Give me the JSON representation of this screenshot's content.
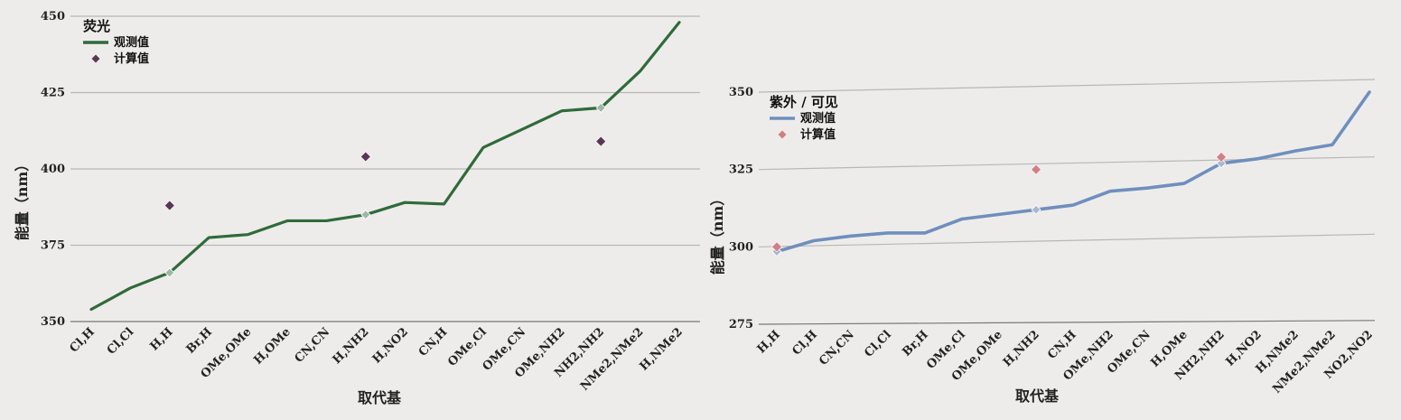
{
  "chart_data": [
    {
      "type": "line",
      "legend_title": "荧光",
      "xlabel": "取代基",
      "ylabel": "能量（nm）",
      "ylim": [
        350,
        450
      ],
      "yticks": [
        350,
        375,
        400,
        425,
        450
      ],
      "grid": true,
      "legend_position": "top-left",
      "categories": [
        "Cl,H",
        "Cl,Cl",
        "H,H",
        "Br,H",
        "OMe,OMe",
        "H,OMe",
        "CN,CN",
        "H,NH2",
        "H,NO2",
        "CN,H",
        "OMe,Cl",
        "OMe,CN",
        "OMe,NH2",
        "NH2,NH2",
        "NMe2,NMe2",
        "H,NMe2"
      ],
      "series": [
        {
          "name": "观测值",
          "kind": "line",
          "color": "#2f6b3a",
          "values": [
            354,
            361,
            366,
            377.5,
            378.5,
            383,
            383,
            385,
            389,
            388.5,
            407,
            413,
            419,
            420,
            432,
            448
          ]
        },
        {
          "name": "计算值",
          "kind": "scatter",
          "color": "#5a3655",
          "points": [
            {
              "x": "H,H",
              "y": 388
            },
            {
              "x": "H,NH2",
              "y": 404
            },
            {
              "x": "NH2,NH2",
              "y": 409
            }
          ]
        }
      ]
    },
    {
      "type": "line",
      "legend_title": "紫外 / 可见",
      "xlabel": "取代基",
      "ylabel": "能量（nm）",
      "ylim": [
        275,
        350
      ],
      "yticks": [
        275,
        300,
        325,
        350
      ],
      "grid": true,
      "legend_position": "top-left",
      "categories": [
        "H,H",
        "Cl,H",
        "CN,CN",
        "Cl,Cl",
        "Br,H",
        "OMe,Cl",
        "OMe,OMe",
        "H,NH2",
        "CN,H",
        "OMe,NH2",
        "OMe,CN",
        "H,OMe",
        "NH2,NH2",
        "H,NO2",
        "H,NMe2",
        "NMe2,NMe2",
        "NO2,NO2"
      ],
      "series": [
        {
          "name": "观测值",
          "kind": "line",
          "color": "#6f8fbd",
          "values": [
            298.5,
            302,
            303.5,
            304.5,
            304.5,
            309,
            310.5,
            312,
            313.5,
            318,
            319,
            320.5,
            327,
            328.5,
            331,
            333,
            350
          ]
        },
        {
          "name": "计算值",
          "kind": "scatter",
          "color": "#d27f83",
          "points": [
            {
              "x": "H,H",
              "y": 300
            },
            {
              "x": "H,NH2",
              "y": 325
            },
            {
              "x": "NH2,NH2",
              "y": 329
            }
          ]
        }
      ]
    }
  ]
}
